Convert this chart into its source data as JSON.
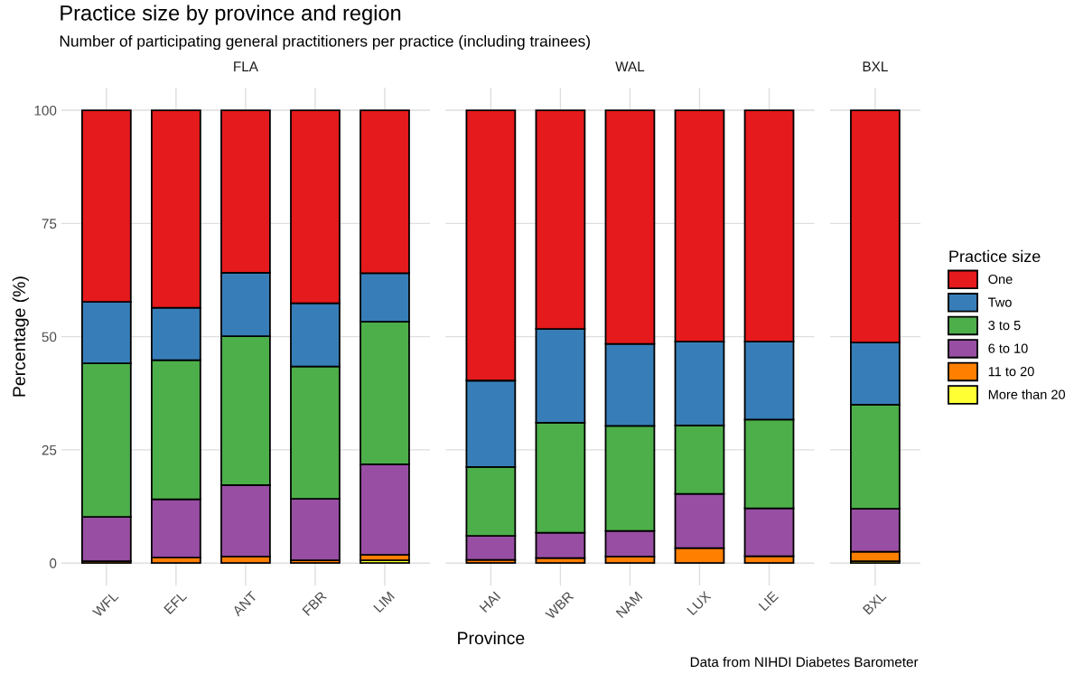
{
  "chart_data": [
    {
      "type": "bar",
      "stacked": true,
      "title": "Practice size by province and region",
      "subtitle": "Number of participating general practitioners per practice (including trainees)",
      "ylabel": "Percentage (%)",
      "annotations": [
        "FLA"
      ],
      "categories": [
        "WFL",
        "EFL",
        "ANT",
        "FBR",
        "LIM"
      ],
      "ylim": [
        -5,
        105
      ],
      "yticks": [
        0,
        25,
        50,
        75,
        100
      ],
      "grid": true,
      "legend": "right",
      "legend_title": "Practice size",
      "series": [
        {
          "name": "More than 20",
          "color": "#ffff33",
          "values": [
            0,
            0,
            0,
            0,
            0.6
          ]
        },
        {
          "name": "11 to 20",
          "color": "#ff7f00",
          "values": [
            0.4,
            1.2,
            1.4,
            0.6,
            1.2
          ]
        },
        {
          "name": "6 to 10",
          "color": "#984ea3",
          "values": [
            9.8,
            12.9,
            15.8,
            13.6,
            20.0
          ]
        },
        {
          "name": "3 to 5",
          "color": "#4daf4a",
          "values": [
            33.9,
            30.7,
            32.9,
            29.2,
            31.5
          ]
        },
        {
          "name": "Two",
          "color": "#377eb8",
          "values": [
            13.6,
            11.6,
            14.0,
            14.0,
            10.7
          ]
        },
        {
          "name": "One",
          "color": "#e41a1c",
          "values": [
            42.3,
            43.6,
            35.9,
            42.6,
            36.0
          ]
        }
      ]
    },
    {
      "type": "bar",
      "stacked": true,
      "xlabel": "Province",
      "annotations": [
        "WAL"
      ],
      "categories": [
        "HAI",
        "WBR",
        "NAM",
        "LUX",
        "LIE"
      ],
      "ylim": [
        -5,
        105
      ],
      "yticks": [
        0,
        25,
        50,
        75,
        100
      ],
      "grid": true,
      "tick_labels": "x",
      "series": [
        {
          "color": "#ffff33",
          "values": [
            0,
            0,
            0,
            0,
            0
          ]
        },
        {
          "color": "#ff7f00",
          "values": [
            0.7,
            1.1,
            1.4,
            3.3,
            1.5
          ]
        },
        {
          "color": "#984ea3",
          "values": [
            5.3,
            5.6,
            5.7,
            12.0,
            10.6
          ]
        },
        {
          "color": "#4daf4a",
          "values": [
            15.2,
            24.3,
            23.2,
            15.1,
            19.6
          ]
        },
        {
          "color": "#377eb8",
          "values": [
            19.1,
            20.7,
            18.1,
            18.5,
            17.2
          ]
        },
        {
          "color": "#e41a1c",
          "values": [
            59.7,
            48.3,
            51.6,
            51.1,
            51.1
          ]
        }
      ]
    },
    {
      "type": "bar",
      "stacked": true,
      "annotations": [
        "BXL",
        "Data from NIHDI Diabetes Barometer"
      ],
      "categories": [
        "BXL"
      ],
      "ylim": [
        -5,
        105
      ],
      "yticks": [
        0,
        25,
        50,
        75,
        100
      ],
      "grid": true,
      "tick_labels": "x",
      "series": [
        {
          "color": "#ffff33",
          "values": [
            0.4
          ]
        },
        {
          "color": "#ff7f00",
          "values": [
            2.1
          ]
        },
        {
          "color": "#984ea3",
          "values": [
            9.5
          ]
        },
        {
          "color": "#4daf4a",
          "values": [
            23.0
          ]
        },
        {
          "color": "#377eb8",
          "values": [
            13.7
          ]
        },
        {
          "color": "#e41a1c",
          "values": [
            51.3
          ]
        }
      ]
    }
  ]
}
